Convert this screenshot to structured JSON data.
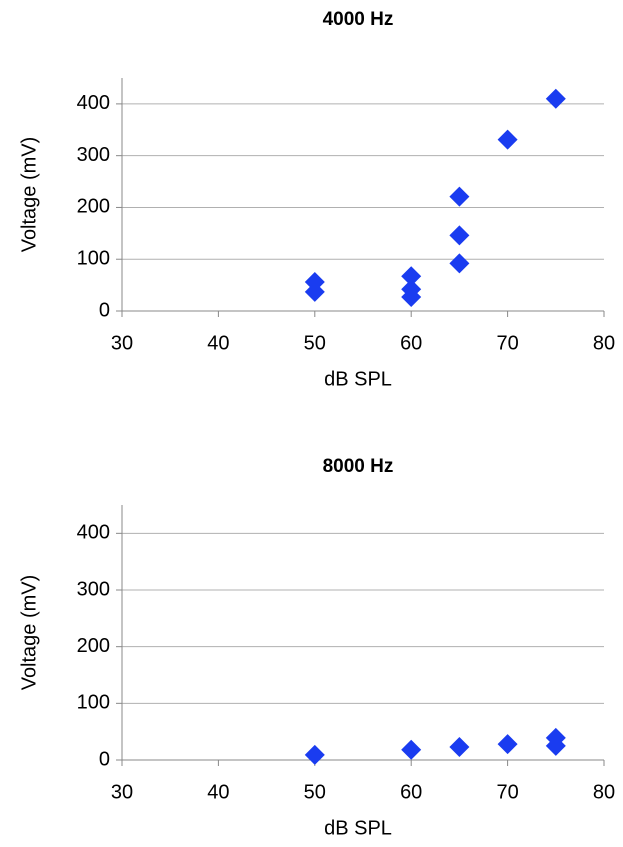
{
  "chart_data": [
    {
      "type": "scatter",
      "title": "4000 Hz",
      "x_label": "dB SPL",
      "y_label": "Voltage (mV)",
      "x": [
        50,
        50,
        60,
        60,
        60,
        65,
        65,
        65,
        70,
        75
      ],
      "values": [
        56,
        37,
        67,
        42,
        27,
        221,
        146,
        92,
        331,
        410
      ],
      "color": "#1a3cf0",
      "xlim": [
        30,
        80
      ],
      "xticks": [
        30,
        40,
        50,
        60,
        70,
        80
      ],
      "ylim": [
        0,
        450
      ],
      "yticks": [
        0,
        100,
        200,
        300,
        400
      ],
      "grid": true
    },
    {
      "type": "scatter",
      "title": "8000 Hz",
      "x_label": "dB SPL",
      "y_label": "Voltage (mV)",
      "x": [
        50,
        60,
        65,
        70,
        75,
        75
      ],
      "values": [
        9,
        18,
        23,
        28,
        39,
        25
      ],
      "color": "#1a3cf0",
      "xlim": [
        30,
        80
      ],
      "xticks": [
        30,
        40,
        50,
        60,
        70,
        80
      ],
      "ylim": [
        0,
        450
      ],
      "yticks": [
        0,
        100,
        200,
        300,
        400
      ],
      "grid": true
    }
  ]
}
